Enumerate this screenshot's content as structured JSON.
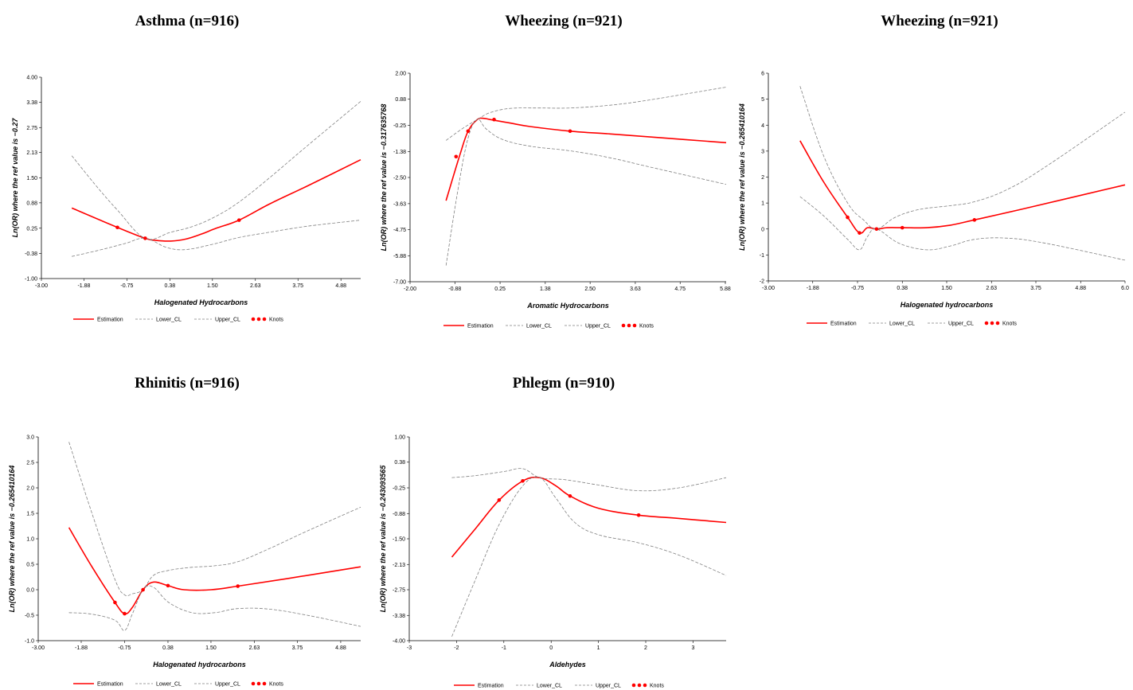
{
  "legend": {
    "estimation": "Estimation",
    "lower": "Lower_CL",
    "upper": "Upper_CL",
    "knots": "Knots"
  },
  "colors": {
    "estimate": "#ff0000",
    "ci": "#808080",
    "knot": "#ff0000"
  },
  "chart_data": [
    {
      "type": "line",
      "title": "Asthma (n=916)",
      "xlabel": "Halogenated Hydrocarbons",
      "ylabel": "Ln(OR) where the ref value is −0.27",
      "xticks": [
        "-3.00",
        "-1.88",
        "-0.75",
        "0.38",
        "1.50",
        "2.63",
        "3.75",
        "4.88"
      ],
      "yticks": [
        "-1.00",
        "-0.38",
        "0.25",
        "0.88",
        "1.50",
        "2.13",
        "2.75",
        "3.38",
        "4.00"
      ],
      "xlim": [
        -3.0,
        5.4
      ],
      "ylim": [
        -1.0,
        4.0
      ],
      "series": [
        {
          "name": "Estimation",
          "x": [
            -2.2,
            -1.0,
            -0.27,
            0.0,
            0.4,
            0.8,
            1.2,
            1.6,
            2.2,
            3.0,
            4.0,
            5.4
          ],
          "y": [
            0.75,
            0.27,
            0.0,
            -0.05,
            -0.07,
            -0.02,
            0.1,
            0.25,
            0.45,
            0.85,
            1.3,
            1.95
          ]
        },
        {
          "name": "Lower_CL",
          "x": [
            -2.2,
            -1.5,
            -0.8,
            -0.27,
            0.3,
            0.8,
            1.5,
            2.2,
            3.0,
            4.0,
            5.4
          ],
          "y": [
            -0.45,
            -0.3,
            -0.13,
            0.0,
            -0.23,
            -0.28,
            -0.15,
            0.02,
            0.15,
            0.3,
            0.45
          ]
        },
        {
          "name": "Upper_CL",
          "x": [
            -2.2,
            -1.6,
            -1.0,
            -0.27,
            0.4,
            1.0,
            1.6,
            2.2,
            3.0,
            4.0,
            5.4
          ],
          "y": [
            2.05,
            1.35,
            0.7,
            0.0,
            0.15,
            0.3,
            0.55,
            0.9,
            1.5,
            2.3,
            3.4
          ]
        }
      ],
      "knots": {
        "x": [
          -1.0,
          -0.27,
          2.2
        ],
        "y": [
          0.27,
          0.0,
          0.45
        ]
      }
    },
    {
      "type": "line",
      "title": "Wheezing (n=921)",
      "xlabel": "Aromatic Hydrocarbons",
      "ylabel": "Ln(OR) where the ref value is −0.317635768",
      "xticks": [
        "-2.00",
        "-0.88",
        "0.25",
        "1.38",
        "2.50",
        "3.63",
        "4.75",
        "5.88"
      ],
      "yticks": [
        "-7.00",
        "-5.88",
        "-4.75",
        "-3.63",
        "-2.50",
        "-1.38",
        "-0.25",
        "0.88",
        "2.00"
      ],
      "xlim": [
        -2.0,
        5.9
      ],
      "ylim": [
        -7.0,
        2.0
      ],
      "series": [
        {
          "name": "Estimation",
          "x": [
            -1.1,
            -0.75,
            -0.55,
            -0.32,
            -0.15,
            0.0,
            0.5,
            1.0,
            2.0,
            3.0,
            4.0,
            5.9
          ],
          "y": [
            -3.5,
            -1.5,
            -0.5,
            0.0,
            0.05,
            0.0,
            -0.15,
            -0.3,
            -0.5,
            -0.62,
            -0.75,
            -1.0
          ]
        },
        {
          "name": "Lower_CL",
          "x": [
            -1.1,
            -0.8,
            -0.55,
            -0.32,
            -0.1,
            0.3,
            1.0,
            2.0,
            3.0,
            4.0,
            5.9
          ],
          "y": [
            -6.3,
            -3.0,
            -0.8,
            0.0,
            -0.4,
            -0.85,
            -1.15,
            -1.35,
            -1.65,
            -2.05,
            -2.8
          ]
        },
        {
          "name": "Upper_CL",
          "x": [
            -1.1,
            -0.7,
            -0.32,
            0.0,
            0.5,
            1.2,
            2.0,
            3.0,
            4.0,
            5.9
          ],
          "y": [
            -0.9,
            -0.4,
            0.0,
            0.3,
            0.48,
            0.5,
            0.5,
            0.62,
            0.85,
            1.4
          ]
        }
      ],
      "knots": {
        "x": [
          -0.85,
          -0.55,
          0.1,
          2.0
        ],
        "y": [
          -1.6,
          -0.5,
          0.0,
          -0.5
        ]
      }
    },
    {
      "type": "line",
      "title": "Wheezing (n=921)",
      "xlabel": "Halogenated hydrocarbons",
      "ylabel": "Ln(OR) where the ref value is −0.265410164",
      "xticks": [
        "-3.00",
        "-1.88",
        "-0.75",
        "0.38",
        "1.50",
        "2.63",
        "3.75",
        "4.88",
        "6.0"
      ],
      "yticks": [
        "-2",
        "-1",
        "0",
        "1",
        "2",
        "3",
        "4",
        "5",
        "6"
      ],
      "xlim": [
        -3.0,
        6.0
      ],
      "ylim": [
        -2.0,
        6.0
      ],
      "series": [
        {
          "name": "Estimation",
          "x": [
            -2.2,
            -1.6,
            -1.0,
            -0.7,
            -0.5,
            -0.27,
            0.0,
            0.38,
            1.0,
            1.6,
            2.2,
            3.5,
            6.0
          ],
          "y": [
            3.4,
            1.8,
            0.45,
            -0.15,
            0.05,
            0.0,
            0.05,
            0.05,
            0.05,
            0.15,
            0.35,
            0.8,
            1.7
          ]
        },
        {
          "name": "Lower_CL",
          "x": [
            -2.2,
            -1.6,
            -1.0,
            -0.7,
            -0.5,
            -0.27,
            0.3,
            1.0,
            1.6,
            2.2,
            3.0,
            4.0,
            6.0
          ],
          "y": [
            1.25,
            0.5,
            -0.4,
            -0.8,
            -0.3,
            0.0,
            -0.55,
            -0.8,
            -0.65,
            -0.4,
            -0.35,
            -0.55,
            -1.2
          ]
        },
        {
          "name": "Upper_CL",
          "x": [
            -2.2,
            -1.6,
            -1.0,
            -0.6,
            -0.27,
            0.2,
            0.8,
            1.6,
            2.2,
            3.0,
            4.0,
            6.0
          ],
          "y": [
            5.5,
            2.8,
            1.0,
            0.35,
            0.0,
            0.45,
            0.75,
            0.9,
            1.05,
            1.5,
            2.4,
            4.5
          ]
        }
      ],
      "knots": {
        "x": [
          -1.0,
          -0.7,
          -0.27,
          0.38,
          2.2
        ],
        "y": [
          0.45,
          -0.15,
          0.0,
          0.05,
          0.35
        ]
      }
    },
    {
      "type": "line",
      "title": "Rhinitis (n=916)",
      "xlabel": "Halogenated hydrocarbons",
      "ylabel": "Ln(OR) where the ref value is −0.265410164",
      "xticks": [
        "-3.00",
        "-1.88",
        "-0.75",
        "0.38",
        "1.50",
        "2.63",
        "3.75",
        "4.88"
      ],
      "yticks": [
        "-1.0",
        "-0.5",
        "0.0",
        "0.5",
        "1.0",
        "1.5",
        "2.0",
        "2.5",
        "3.0"
      ],
      "xlim": [
        -3.0,
        5.4
      ],
      "ylim": [
        -1.0,
        3.0
      ],
      "series": [
        {
          "name": "Estimation",
          "x": [
            -2.2,
            -1.6,
            -1.0,
            -0.75,
            -0.55,
            -0.27,
            0.0,
            0.38,
            0.8,
            1.5,
            2.2,
            3.5,
            5.4
          ],
          "y": [
            1.22,
            0.45,
            -0.25,
            -0.47,
            -0.35,
            0.0,
            0.15,
            0.08,
            0.0,
            0.0,
            0.07,
            0.22,
            0.45
          ]
        },
        {
          "name": "Lower_CL",
          "x": [
            -2.2,
            -1.6,
            -1.0,
            -0.75,
            -0.55,
            -0.27,
            0.0,
            0.4,
            1.0,
            1.6,
            2.2,
            3.0,
            4.0,
            5.4
          ],
          "y": [
            -0.45,
            -0.48,
            -0.6,
            -0.8,
            -0.48,
            0.0,
            0.05,
            -0.25,
            -0.45,
            -0.45,
            -0.37,
            -0.38,
            -0.5,
            -0.72
          ]
        },
        {
          "name": "Upper_CL",
          "x": [
            -2.2,
            -1.6,
            -1.0,
            -0.75,
            -0.55,
            -0.27,
            0.0,
            0.4,
            1.0,
            1.6,
            2.2,
            3.0,
            4.0,
            5.4
          ],
          "y": [
            2.9,
            1.5,
            0.2,
            -0.1,
            -0.08,
            0.0,
            0.28,
            0.38,
            0.44,
            0.47,
            0.55,
            0.8,
            1.15,
            1.62
          ]
        }
      ],
      "knots": {
        "x": [
          -1.0,
          -0.75,
          -0.27,
          0.38,
          2.2
        ],
        "y": [
          -0.25,
          -0.47,
          0.0,
          0.08,
          0.07
        ]
      }
    },
    {
      "type": "line",
      "title": "Phlegm (n=910)",
      "xlabel": "Aldehydes",
      "ylabel": "Ln(OR) where the ref value is −0.243093565",
      "xticks": [
        "-3",
        "-2",
        "-1",
        "0",
        "1",
        "2",
        "3"
      ],
      "yticks": [
        "-4.00",
        "-3.38",
        "-2.75",
        "-2.13",
        "-1.50",
        "-0.88",
        "-0.25",
        "0.38",
        "1.00"
      ],
      "xlim": [
        -3.0,
        3.7
      ],
      "ylim": [
        -4.0,
        1.0
      ],
      "series": [
        {
          "name": "Estimation",
          "x": [
            -2.1,
            -1.6,
            -1.1,
            -0.6,
            -0.24,
            0.1,
            0.4,
            1.0,
            1.85,
            2.7,
            3.7
          ],
          "y": [
            -1.95,
            -1.25,
            -0.55,
            -0.08,
            0.0,
            -0.2,
            -0.45,
            -0.75,
            -0.92,
            -1.0,
            -1.1
          ]
        },
        {
          "name": "Lower_CL",
          "x": [
            -2.1,
            -1.6,
            -1.1,
            -0.6,
            -0.24,
            0.1,
            0.5,
            1.0,
            1.85,
            2.7,
            3.7
          ],
          "y": [
            -3.9,
            -2.5,
            -1.15,
            -0.2,
            0.0,
            -0.5,
            -1.1,
            -1.4,
            -1.6,
            -1.9,
            -2.4
          ]
        },
        {
          "name": "Upper_CL",
          "x": [
            -2.1,
            -1.6,
            -1.0,
            -0.6,
            -0.24,
            0.3,
            1.0,
            1.85,
            2.7,
            3.7
          ],
          "y": [
            0.0,
            0.05,
            0.15,
            0.22,
            0.0,
            -0.05,
            -0.18,
            -0.32,
            -0.25,
            0.0
          ]
        }
      ],
      "knots": {
        "x": [
          -1.1,
          -0.6,
          0.4,
          1.85
        ],
        "y": [
          -0.55,
          -0.08,
          -0.45,
          -0.92
        ]
      }
    }
  ]
}
